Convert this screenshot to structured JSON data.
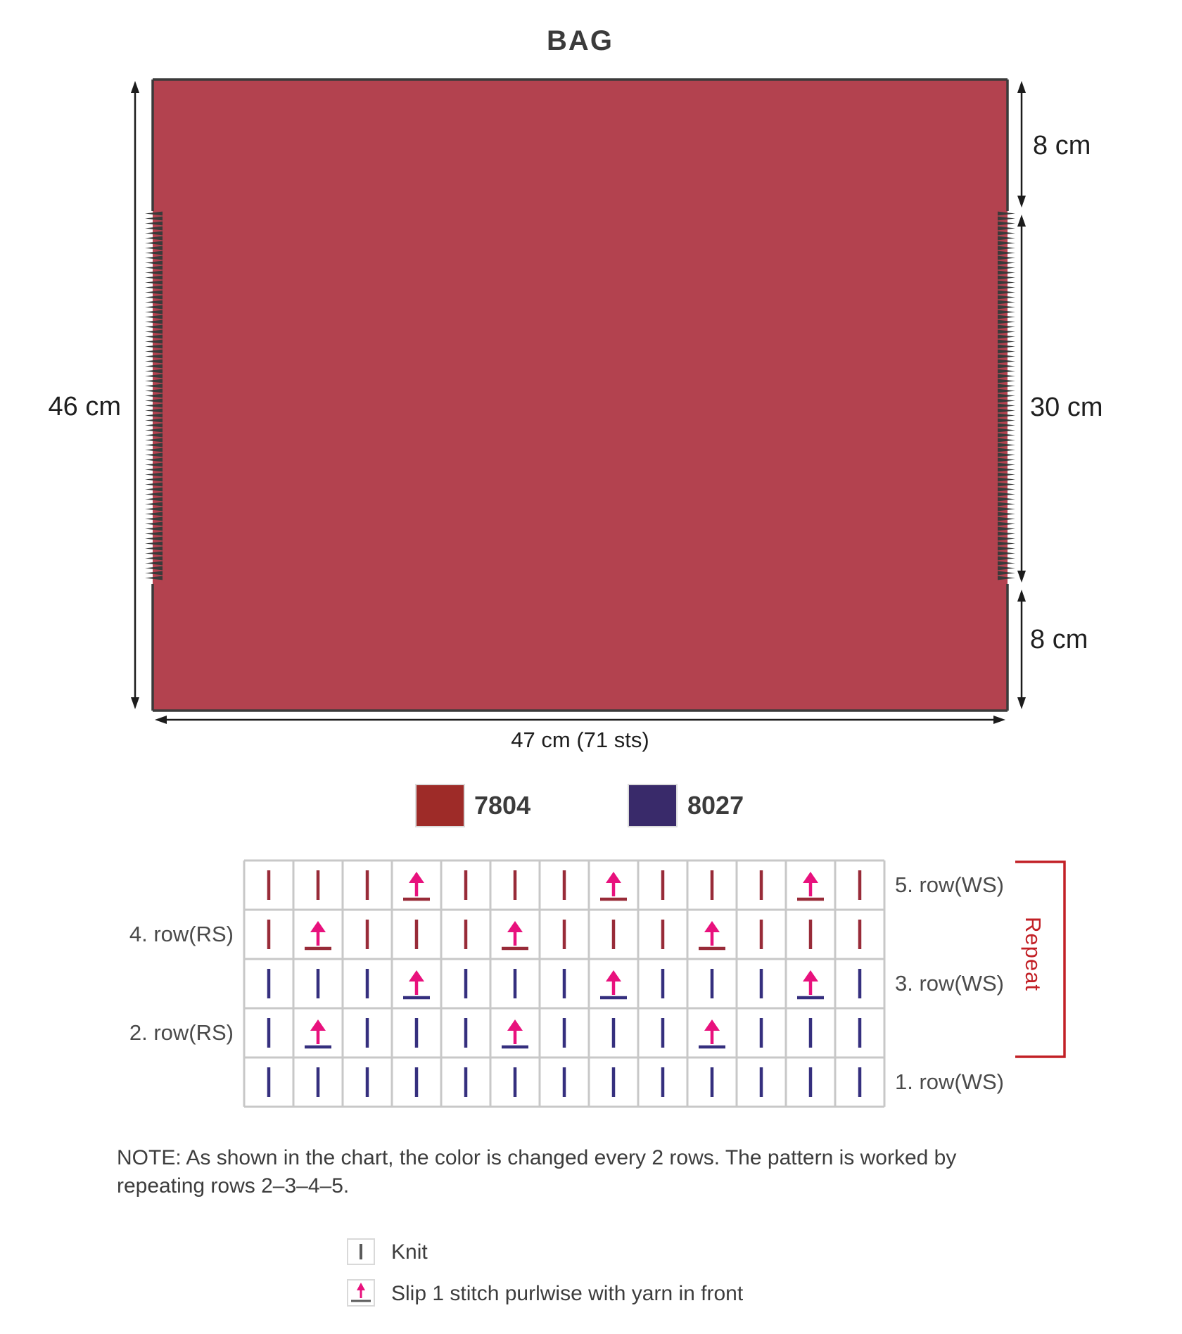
{
  "title": "BAG",
  "schematic": {
    "height_label": "46 cm",
    "top_right_label": "8 cm",
    "middle_right_label": "30 cm",
    "bottom_right_label": "8 cm",
    "width_label": "47 cm (71 sts)",
    "fabric_color": "#b3424f",
    "outline_color": "#3a3a3a",
    "arrow_color": "#1c1c1c"
  },
  "yarn_legend": [
    {
      "code": "7804",
      "color": "#9e2b28"
    },
    {
      "code": "8027",
      "color": "#392a6a"
    }
  ],
  "knit_chart": {
    "columns": 13,
    "grid_color": "#c8c8c8",
    "arrow_color": "#e8117d",
    "repeat_label": "Repeat",
    "repeat_color": "#c22026",
    "rows": [
      {
        "label": "5. row(WS)",
        "side": "right",
        "yarn": "7804",
        "symbol_color": "#982b38",
        "cells": [
          "K",
          "K",
          "K",
          "S",
          "K",
          "K",
          "K",
          "S",
          "K",
          "K",
          "K",
          "S",
          "K"
        ]
      },
      {
        "label": "4. row(RS)",
        "side": "left",
        "yarn": "7804",
        "symbol_color": "#982b38",
        "cells": [
          "K",
          "S",
          "K",
          "K",
          "K",
          "S",
          "K",
          "K",
          "K",
          "S",
          "K",
          "K",
          "K"
        ]
      },
      {
        "label": "3. row(WS)",
        "side": "right",
        "yarn": "8027",
        "symbol_color": "#352f7e",
        "cells": [
          "K",
          "K",
          "K",
          "S",
          "K",
          "K",
          "K",
          "S",
          "K",
          "K",
          "K",
          "S",
          "K"
        ]
      },
      {
        "label": "2. row(RS)",
        "side": "left",
        "yarn": "8027",
        "symbol_color": "#352f7e",
        "cells": [
          "K",
          "S",
          "K",
          "K",
          "K",
          "S",
          "K",
          "K",
          "K",
          "S",
          "K",
          "K",
          "K"
        ]
      },
      {
        "label": "1. row(WS)",
        "side": "right",
        "yarn": "8027",
        "symbol_color": "#352f7e",
        "cells": [
          "K",
          "K",
          "K",
          "K",
          "K",
          "K",
          "K",
          "K",
          "K",
          "K",
          "K",
          "K",
          "K"
        ]
      }
    ]
  },
  "note": "NOTE: As shown in the chart, the color is changed every 2 rows. The pattern is worked by repeating rows 2–3–4–5.",
  "symbol_legend": [
    {
      "symbol": "knit",
      "label": "Knit"
    },
    {
      "symbol": "slip",
      "label": "Slip 1 stitch purlwise with yarn in front"
    }
  ]
}
